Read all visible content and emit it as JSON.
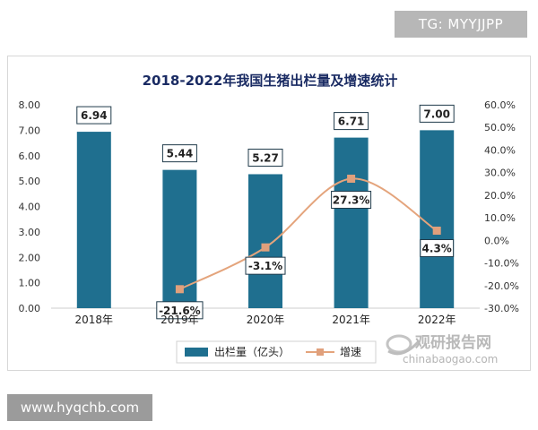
{
  "watermarks": {
    "top": "TG: MYYJJPP",
    "bottom": "www.hyqchb.com"
  },
  "logo": {
    "name": "观研报告网",
    "url_text": "chinabaogao.com"
  },
  "colors": {
    "bar": "#1f6f8f",
    "line": "#e4a47c",
    "marker": "#e0a07c",
    "title": "#1a2b63"
  },
  "chart_data": {
    "type": "bar",
    "title": "2018-2022年我国生猪出栏量及增速统计",
    "categories": [
      "2018年",
      "2019年",
      "2020年",
      "2021年",
      "2022年"
    ],
    "ylim": [
      0,
      8
    ],
    "y2lim": [
      -30,
      60
    ],
    "y_ticks": [
      "0.00",
      "1.00",
      "2.00",
      "3.00",
      "4.00",
      "5.00",
      "6.00",
      "7.00",
      "8.00"
    ],
    "y2_ticks": [
      "-30.0%",
      "-20.0%",
      "-10.0%",
      "0.0%",
      "10.0%",
      "20.0%",
      "30.0%",
      "40.0%",
      "50.0%",
      "60.0%"
    ],
    "series": [
      {
        "name": "出栏量（亿头）",
        "type": "bar",
        "axis": "left",
        "values": [
          6.94,
          5.44,
          5.27,
          6.71,
          7.0
        ],
        "labels": [
          "6.94",
          "5.44",
          "5.27",
          "6.71",
          "7.00"
        ]
      },
      {
        "name": "增速",
        "type": "line",
        "axis": "right",
        "values": [
          null,
          -21.6,
          -3.1,
          27.3,
          4.3
        ],
        "labels": [
          "",
          "-21.6%",
          "-3.1%",
          "27.3%",
          "4.3%"
        ]
      }
    ],
    "legend": "bottom",
    "grid": false
  }
}
